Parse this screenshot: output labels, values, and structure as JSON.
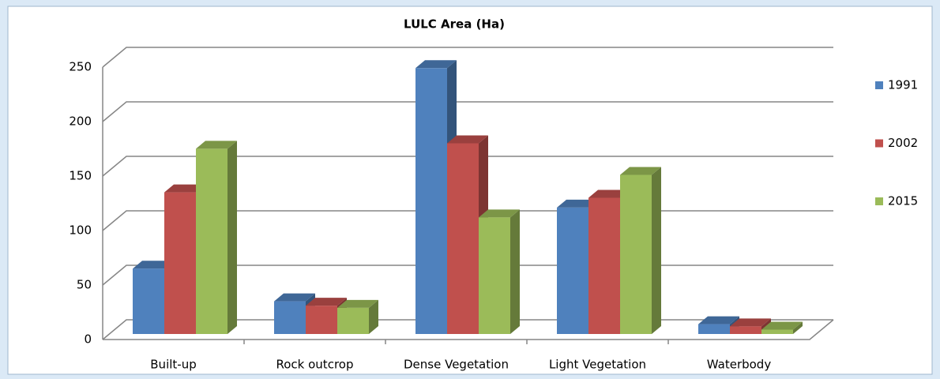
{
  "chart_data": {
    "type": "bar",
    "title": "LULC Area (Ha)",
    "categories": [
      "Built-up",
      "Rock outcrop",
      "Dense Vegetation",
      "Light Vegetation",
      "Waterbody"
    ],
    "series": [
      {
        "name": "1991",
        "color": "#4f81bd",
        "values": [
          60,
          30,
          244,
          116,
          9
        ]
      },
      {
        "name": "2002",
        "color": "#c0504d",
        "values": [
          130,
          26,
          175,
          125,
          7
        ]
      },
      {
        "name": "2015",
        "color": "#9bbb59",
        "values": [
          170,
          24,
          107,
          146,
          4
        ]
      }
    ],
    "ylim": [
      0,
      250
    ],
    "yticks": [
      0,
      50,
      100,
      150,
      200,
      250
    ],
    "grid": true,
    "legend": "right"
  }
}
